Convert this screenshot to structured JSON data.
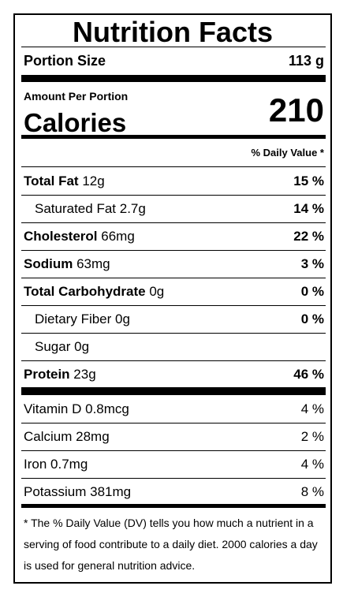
{
  "header": {
    "title": "Nutrition Facts",
    "portion_label": "Portion Size",
    "portion_value": "113 g"
  },
  "calories": {
    "amount_label": "Amount Per Portion",
    "label": "Calories",
    "value": "210"
  },
  "daily_value_header": "% Daily Value *",
  "nutrients": [
    {
      "name": "Total Fat",
      "amount": "12g",
      "dv": "15 %"
    },
    {
      "name": "Saturated Fat",
      "amount": "2.7g",
      "dv": "14 %"
    },
    {
      "name": "Cholesterol",
      "amount": "66mg",
      "dv": "22 %"
    },
    {
      "name": "Sodium",
      "amount": "63mg",
      "dv": "3 %"
    },
    {
      "name": "Total Carbohydrate",
      "amount": "0g",
      "dv": "0 %"
    },
    {
      "name": "Dietary Fiber",
      "amount": "0g",
      "dv": "0 %"
    },
    {
      "name": "Sugar",
      "amount": "0g"
    },
    {
      "name": "Protein",
      "amount": "23g",
      "dv": "46 %"
    }
  ],
  "vitamins": [
    {
      "name": "Vitamin D",
      "amount": "0.8mcg",
      "dv": "4 %"
    },
    {
      "name": "Calcium",
      "amount": "28mg",
      "dv": "2 %"
    },
    {
      "name": "Iron",
      "amount": "0.7mg",
      "dv": "4 %"
    },
    {
      "name": "Potassium",
      "amount": "381mg",
      "dv": "8 %"
    }
  ],
  "footnote": "* The % Daily Value (DV) tells you how much a nutrient in a serving of food contribute to a daily diet. 2000 calories a day is used for general nutrition advice."
}
